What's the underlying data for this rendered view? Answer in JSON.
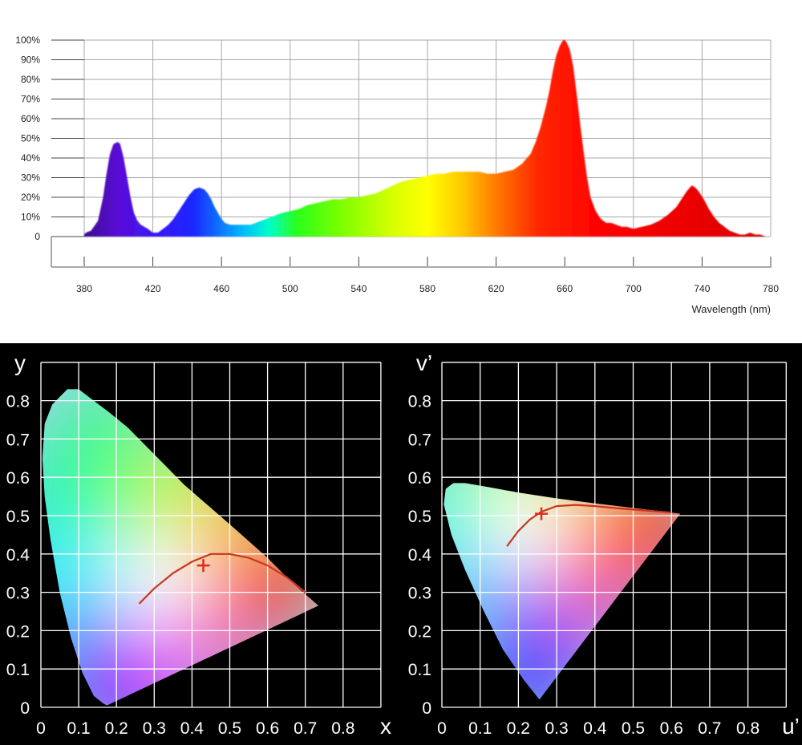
{
  "chart_data": [
    {
      "type": "area",
      "xlabel": "Wavelength (nm)",
      "ylabel": "",
      "xlim": [
        380,
        780
      ],
      "ylim": [
        0,
        100
      ],
      "x_ticks": [
        "380",
        "420",
        "460",
        "500",
        "540",
        "580",
        "620",
        "660",
        "700",
        "740",
        "780"
      ],
      "y_ticks": [
        "0",
        "10%",
        "20%",
        "30%",
        "40%",
        "50%",
        "60%",
        "70%",
        "80%",
        "90%",
        "100%"
      ],
      "grid": true,
      "fill": "spectral colors",
      "series": [
        {
          "x": [
            380,
            381,
            384,
            388,
            391,
            393,
            395,
            397,
            399,
            400,
            401,
            403,
            405,
            407,
            409,
            411,
            413,
            415,
            417,
            420,
            423,
            426,
            429,
            432,
            435,
            438,
            441,
            444,
            447,
            450,
            452,
            454,
            456,
            458,
            460,
            462,
            465,
            468,
            471,
            474,
            477,
            480,
            483,
            486,
            489,
            492,
            495,
            500,
            505,
            510,
            515,
            520,
            525,
            530,
            535,
            540,
            545,
            550,
            555,
            560,
            565,
            570,
            575,
            580,
            585,
            590,
            595,
            600,
            605,
            610,
            615,
            620,
            625,
            630,
            635,
            640,
            643,
            646,
            649,
            651,
            653,
            655,
            657,
            659,
            660,
            661,
            663,
            665,
            667,
            669,
            671,
            673,
            675,
            678,
            681,
            684,
            687,
            690,
            693,
            696,
            700,
            705,
            710,
            715,
            720,
            725,
            728,
            731,
            734,
            736,
            738,
            741,
            744,
            747,
            750,
            753,
            756,
            759,
            762,
            765,
            768,
            771,
            774,
            777,
            780
          ],
          "y": [
            1,
            2,
            3,
            8,
            20,
            32,
            42,
            47,
            48,
            48,
            47,
            40,
            30,
            20,
            12,
            8,
            6,
            5,
            4,
            2,
            2,
            4,
            6,
            9,
            13,
            17,
            21,
            24,
            25,
            24,
            22,
            19,
            15,
            12,
            9,
            7,
            6,
            6,
            6,
            6,
            6,
            7,
            8,
            9,
            10,
            11,
            12,
            13,
            14,
            16,
            17,
            18,
            19,
            19,
            20,
            20,
            21,
            22,
            24,
            26,
            28,
            29,
            30,
            31,
            32,
            32,
            33,
            33,
            33,
            33,
            32,
            32,
            33,
            34,
            37,
            42,
            48,
            56,
            66,
            74,
            84,
            92,
            97,
            100,
            100,
            99,
            95,
            86,
            72,
            57,
            43,
            30,
            20,
            13,
            9,
            7,
            7,
            6,
            5,
            5,
            4,
            5,
            6,
            8,
            11,
            15,
            19,
            23,
            26,
            25,
            23,
            19,
            14,
            10,
            7,
            5,
            3,
            2,
            1,
            1,
            2,
            1,
            1,
            0,
            0
          ]
        }
      ]
    },
    {
      "type": "scatter",
      "title": "",
      "xlabel": "x",
      "ylabel": "y",
      "xlim": [
        0,
        0.9
      ],
      "ylim": [
        0,
        0.9
      ],
      "x_ticks": [
        "0",
        "0.1",
        "0.2",
        "0.3",
        "0.4",
        "0.5",
        "0.6",
        "0.7",
        "0.8"
      ],
      "y_ticks": [
        "0",
        "0.1",
        "0.2",
        "0.3",
        "0.4",
        "0.5",
        "0.6",
        "0.7",
        "0.8"
      ],
      "grid": true,
      "background": "#000000",
      "gamut_outline": [
        [
          0.175,
          0.005
        ],
        [
          0.165,
          0.01
        ],
        [
          0.14,
          0.03
        ],
        [
          0.11,
          0.09
        ],
        [
          0.08,
          0.18
        ],
        [
          0.05,
          0.3
        ],
        [
          0.025,
          0.44
        ],
        [
          0.01,
          0.55
        ],
        [
          0.004,
          0.65
        ],
        [
          0.01,
          0.74
        ],
        [
          0.03,
          0.79
        ],
        [
          0.07,
          0.83
        ],
        [
          0.1,
          0.83
        ],
        [
          0.14,
          0.8
        ],
        [
          0.18,
          0.77
        ],
        [
          0.23,
          0.73
        ],
        [
          0.3,
          0.66
        ],
        [
          0.38,
          0.58
        ],
        [
          0.45,
          0.52
        ],
        [
          0.52,
          0.46
        ],
        [
          0.6,
          0.39
        ],
        [
          0.66,
          0.33
        ],
        [
          0.7,
          0.295
        ],
        [
          0.735,
          0.265
        ]
      ],
      "planckian_locus": [
        [
          0.26,
          0.27
        ],
        [
          0.3,
          0.31
        ],
        [
          0.35,
          0.35
        ],
        [
          0.4,
          0.38
        ],
        [
          0.45,
          0.4
        ],
        [
          0.5,
          0.4
        ],
        [
          0.55,
          0.39
        ],
        [
          0.6,
          0.37
        ],
        [
          0.65,
          0.34
        ],
        [
          0.7,
          0.3
        ]
      ],
      "point": {
        "x": 0.43,
        "y": 0.37,
        "marker": "+",
        "color": "#e0281e"
      },
      "locus_color": "#c8361e"
    },
    {
      "type": "scatter",
      "title": "",
      "xlabel": "u’",
      "ylabel": "v’",
      "xlim": [
        0,
        0.9
      ],
      "ylim": [
        0,
        0.9
      ],
      "x_ticks": [
        "0",
        "0.1",
        "0.2",
        "0.3",
        "0.4",
        "0.5",
        "0.6",
        "0.7",
        "0.8"
      ],
      "y_ticks": [
        "0",
        "0.1",
        "0.2",
        "0.3",
        "0.4",
        "0.5",
        "0.6",
        "0.7",
        "0.8"
      ],
      "grid": true,
      "background": "#000000",
      "gamut_outline": [
        [
          0.255,
          0.02
        ],
        [
          0.215,
          0.07
        ],
        [
          0.16,
          0.15
        ],
        [
          0.11,
          0.25
        ],
        [
          0.06,
          0.36
        ],
        [
          0.025,
          0.45
        ],
        [
          0.005,
          0.53
        ],
        [
          0.01,
          0.57
        ],
        [
          0.03,
          0.585
        ],
        [
          0.06,
          0.585
        ],
        [
          0.12,
          0.575
        ],
        [
          0.2,
          0.56
        ],
        [
          0.3,
          0.545
        ],
        [
          0.4,
          0.532
        ],
        [
          0.5,
          0.52
        ],
        [
          0.57,
          0.512
        ],
        [
          0.623,
          0.505
        ]
      ],
      "planckian_locus": [
        [
          0.17,
          0.42
        ],
        [
          0.2,
          0.46
        ],
        [
          0.23,
          0.49
        ],
        [
          0.26,
          0.51
        ],
        [
          0.3,
          0.525
        ],
        [
          0.35,
          0.528
        ],
        [
          0.4,
          0.525
        ],
        [
          0.45,
          0.52
        ],
        [
          0.5,
          0.516
        ],
        [
          0.55,
          0.512
        ],
        [
          0.6,
          0.508
        ]
      ],
      "point": {
        "x": 0.26,
        "y": 0.505,
        "marker": "+",
        "color": "#e0281e"
      },
      "locus_color": "#c8361e"
    }
  ]
}
